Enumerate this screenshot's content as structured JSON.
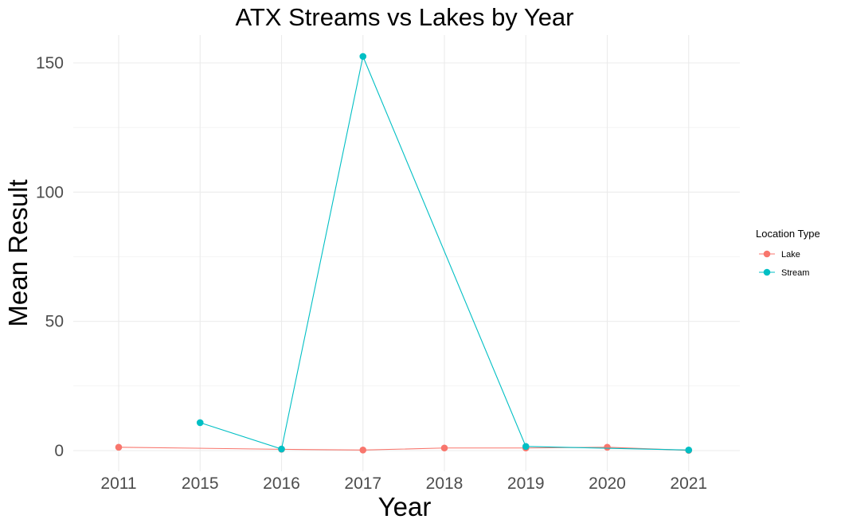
{
  "chart_data": {
    "type": "line",
    "title": "ATX Streams vs Lakes by Year",
    "xlabel": "Year",
    "ylabel": "Mean Result",
    "categories": [
      "2011",
      "2015",
      "2016",
      "2017",
      "2018",
      "2019",
      "2020",
      "2021"
    ],
    "ylim": [
      -8,
      160
    ],
    "yticks": [
      0,
      50,
      100,
      150
    ],
    "grid": true,
    "legend": {
      "title": "Location Type",
      "placement": "right",
      "entries": [
        "Lake",
        "Stream"
      ]
    },
    "series": [
      {
        "name": "Lake",
        "color": "#f8766d",
        "points": [
          {
            "x": "2011",
            "y": 1.3
          },
          {
            "x": "2016",
            "y": 0.5
          },
          {
            "x": "2017",
            "y": 0.2
          },
          {
            "x": "2018",
            "y": 1.0
          },
          {
            "x": "2019",
            "y": 1.0
          },
          {
            "x": "2020",
            "y": 1.3
          },
          {
            "x": "2021",
            "y": 0.1
          }
        ]
      },
      {
        "name": "Stream",
        "color": "#00bfc4",
        "points": [
          {
            "x": "2015",
            "y": 10.8
          },
          {
            "x": "2016",
            "y": 0.6
          },
          {
            "x": "2017",
            "y": 152.5
          },
          {
            "x": "2019",
            "y": 1.6
          },
          {
            "x": "2021",
            "y": 0.2
          }
        ]
      }
    ]
  }
}
